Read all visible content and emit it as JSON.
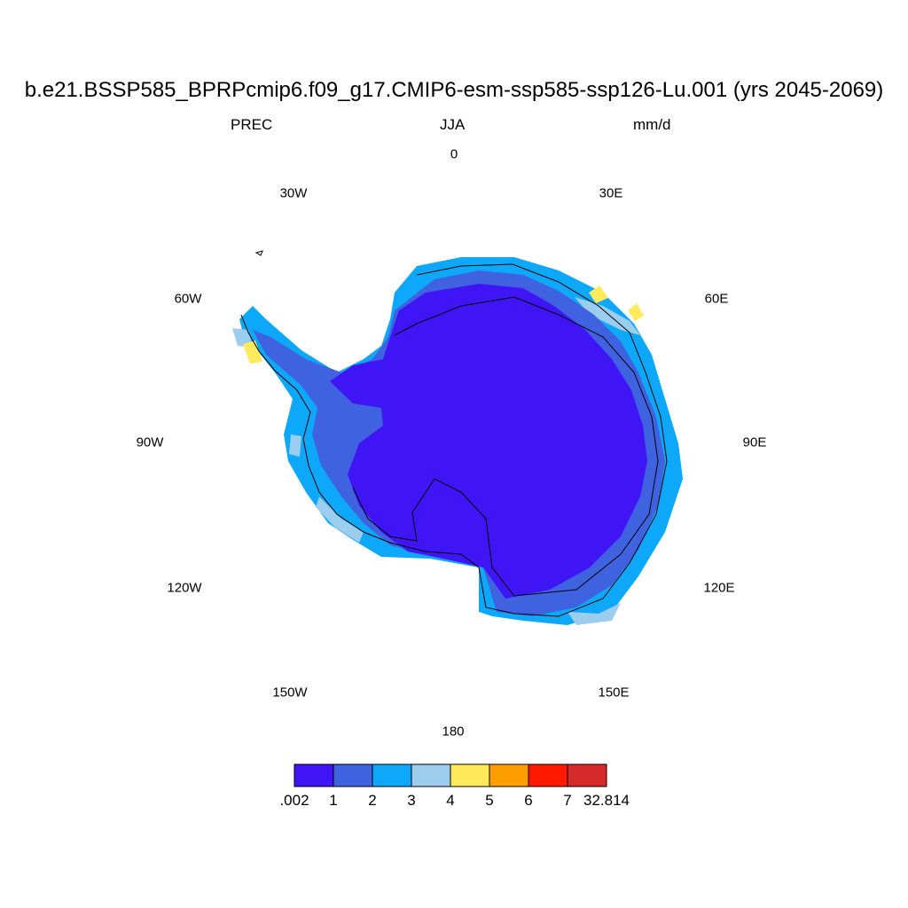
{
  "title": "b.e21.BSSP585_BPRPcmip6.f09_g17.CMIP6-esm-ssp585-ssp126-Lu.001 (yrs 2045-2069)",
  "variable": "PREC",
  "season": "JJA",
  "units": "mm/d",
  "longitude_labels": [
    "0",
    "30E",
    "60E",
    "90E",
    "120E",
    "150E",
    "180",
    "150W",
    "120W",
    "90W",
    "60W",
    "30W"
  ],
  "colorbar": {
    "colors": [
      "#3f14f5",
      "#3f62e0",
      "#0ea8fa",
      "#9ccdee",
      "#ffea5c",
      "#ff9e00",
      "#ff1a00",
      "#d62a2a"
    ],
    "labels": [
      ".002",
      "1",
      "2",
      "3",
      "4",
      "5",
      "6",
      "7",
      "32.814"
    ]
  }
}
